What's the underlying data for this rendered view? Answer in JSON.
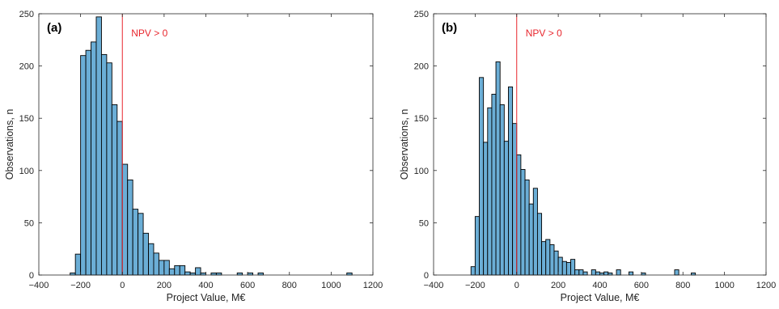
{
  "chart_data": [
    {
      "type": "bar",
      "panel_label": "(a)",
      "xlabel": "Project Value, M€",
      "ylabel": "Observations, n",
      "xlim": [
        -400,
        1200
      ],
      "ylim": [
        0,
        250
      ],
      "xticks": [
        -400,
        -200,
        0,
        200,
        400,
        600,
        800,
        1000,
        1200
      ],
      "yticks": [
        0,
        50,
        100,
        150,
        200,
        250
      ],
      "bin_width": 25,
      "bin_starts": [
        -250,
        -225,
        -200,
        -175,
        -150,
        -125,
        -100,
        -75,
        -50,
        -25,
        0,
        25,
        50,
        75,
        100,
        125,
        150,
        175,
        200,
        225,
        250,
        275,
        300,
        325,
        350,
        375,
        400,
        425,
        450,
        475,
        500,
        525,
        550,
        575,
        600,
        625,
        650,
        675,
        700,
        725,
        750,
        775,
        800,
        825,
        850,
        875,
        900,
        925,
        950,
        975,
        1000,
        1025,
        1050,
        1075
      ],
      "values": [
        2,
        20,
        210,
        215,
        223,
        247,
        211,
        203,
        163,
        147,
        106,
        91,
        63,
        59,
        40,
        30,
        21,
        14,
        14,
        6,
        9,
        9,
        3,
        2,
        7,
        2,
        0,
        2,
        2,
        0,
        0,
        0,
        2,
        0,
        2,
        0,
        2,
        0,
        0,
        0,
        0,
        0,
        0,
        0,
        0,
        0,
        0,
        0,
        0,
        0,
        0,
        0,
        0,
        2
      ],
      "bar_color": "#6baed6",
      "reference_line": {
        "x": 0,
        "label": "NPV > 0",
        "color": "#e8262d"
      }
    },
    {
      "type": "bar",
      "panel_label": "(b)",
      "xlabel": "Project Value, M€",
      "ylabel": "Observations, n",
      "xlim": [
        -400,
        1200
      ],
      "ylim": [
        0,
        250
      ],
      "xticks": [
        -400,
        -200,
        0,
        200,
        400,
        600,
        800,
        1000,
        1200
      ],
      "yticks": [
        0,
        50,
        100,
        150,
        200,
        250
      ],
      "bin_width": 20,
      "bin_starts": [
        -220,
        -200,
        -180,
        -160,
        -140,
        -120,
        -100,
        -80,
        -60,
        -40,
        -20,
        0,
        20,
        40,
        60,
        80,
        100,
        120,
        140,
        160,
        180,
        200,
        220,
        240,
        260,
        280,
        300,
        320,
        340,
        360,
        380,
        400,
        420,
        440,
        460,
        480,
        500,
        520,
        540,
        560,
        580,
        600,
        620,
        640,
        660,
        680,
        700,
        720,
        740,
        760,
        780,
        800,
        820,
        840,
        860,
        880,
        900,
        920,
        940
      ],
      "values": [
        8,
        56,
        189,
        127,
        160,
        173,
        204,
        163,
        128,
        180,
        145,
        115,
        101,
        91,
        68,
        83,
        59,
        32,
        34,
        29,
        23,
        17,
        13,
        12,
        15,
        5,
        5,
        3,
        0,
        5,
        3,
        2,
        3,
        2,
        0,
        5,
        0,
        0,
        3,
        0,
        0,
        2,
        0,
        0,
        0,
        0,
        0,
        0,
        0,
        5,
        0,
        0,
        0,
        2,
        0,
        0,
        0,
        0,
        0
      ],
      "bar_color": "#6baed6",
      "reference_line": {
        "x": 0,
        "label": "NPV > 0",
        "color": "#e8262d"
      }
    }
  ]
}
